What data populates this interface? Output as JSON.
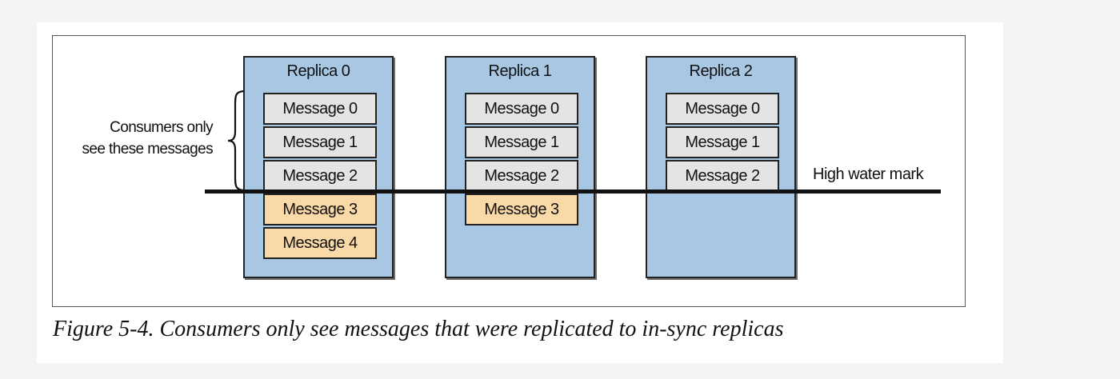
{
  "diagram": {
    "replicas": [
      {
        "title": "Replica 0",
        "messages": [
          {
            "label": "Message 0",
            "state": "visible"
          },
          {
            "label": "Message 1",
            "state": "visible"
          },
          {
            "label": "Message 2",
            "state": "visible"
          },
          {
            "label": "Message 3",
            "state": "unreplicated"
          },
          {
            "label": "Message 4",
            "state": "unreplicated"
          }
        ]
      },
      {
        "title": "Replica 1",
        "messages": [
          {
            "label": "Message 0",
            "state": "visible"
          },
          {
            "label": "Message 1",
            "state": "visible"
          },
          {
            "label": "Message 2",
            "state": "visible"
          },
          {
            "label": "Message 3",
            "state": "unreplicated"
          }
        ]
      },
      {
        "title": "Replica 2",
        "messages": [
          {
            "label": "Message 0",
            "state": "visible"
          },
          {
            "label": "Message 1",
            "state": "visible"
          },
          {
            "label": "Message 2",
            "state": "visible"
          }
        ]
      }
    ],
    "consumers_label_line1": "Consumers only",
    "consumers_label_line2": "see these messages",
    "high_water_mark_label": "High water mark",
    "colors": {
      "replica_fill": "#a7c7e3",
      "visible_message_fill": "#e4e4e4",
      "unreplicated_message_fill": "#fad9a8",
      "line": "#111111"
    }
  },
  "caption": "Figure 5-4. Consumers only see messages that were replicated to in-sync replicas"
}
